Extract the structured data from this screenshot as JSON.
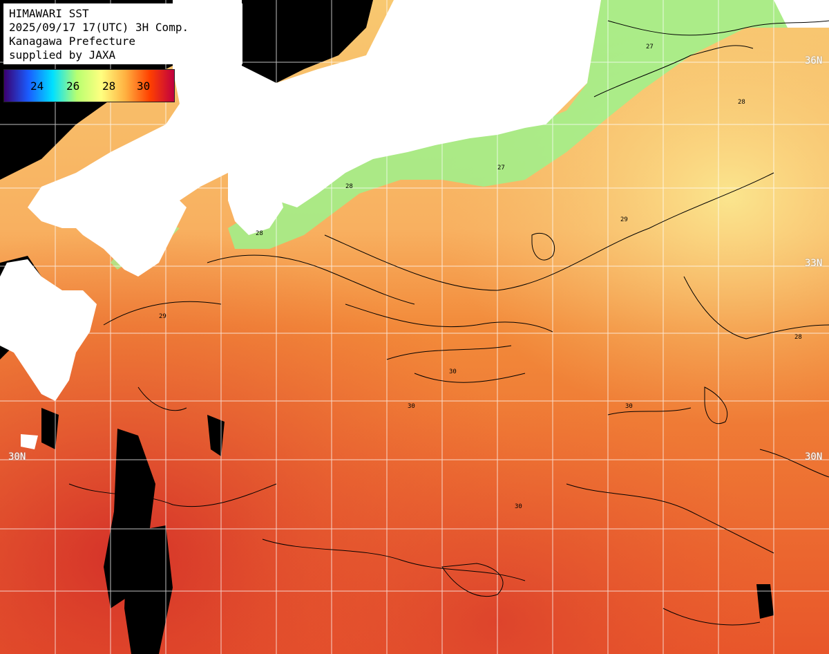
{
  "header": {
    "line1": "HIMAWARI SST",
    "line2": "2025/09/17 17(UTC) 3H Comp.",
    "line3": "Kanagawa Prefecture",
    "line4": "supplied by JAXA"
  },
  "legend": {
    "ticks": [
      "24",
      "26",
      "28",
      "30"
    ],
    "colors": [
      "#3a0070",
      "#1a5cff",
      "#00e0ff",
      "#b8ff70",
      "#ffff80",
      "#ffb040",
      "#ff4000",
      "#c00040"
    ]
  },
  "lat_labels": {
    "n36_right": "36N",
    "n33_right": "33N",
    "n30_left": "30N",
    "n30_right": "30N"
  },
  "contour_labels": [
    "27",
    "28",
    "29",
    "30"
  ],
  "colors": {
    "land": "#ffffff",
    "no_data": "#000000",
    "grid": "#ffffff",
    "contour": "#000000",
    "warm": "#f07a30",
    "hot": "#d8302a",
    "mild": "#f8c060",
    "cool": "#90f090"
  }
}
